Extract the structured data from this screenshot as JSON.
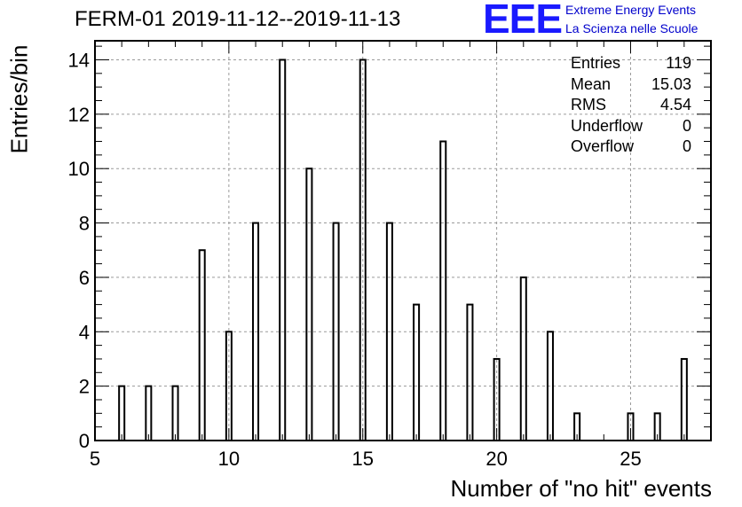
{
  "chart_data": {
    "type": "bar",
    "title": "FERM-01 2019-11-12--2019-11-13",
    "xlabel": "Number of \"no hit\" events",
    "ylabel": "Entries/bin",
    "xlim": [
      5,
      28
    ],
    "ylim": [
      0,
      14.7
    ],
    "grid": true,
    "x_ticks": [
      "5",
      "10",
      "15",
      "20",
      "25"
    ],
    "y_ticks": [
      "0",
      "2",
      "4",
      "6",
      "8",
      "10",
      "12",
      "14"
    ],
    "x": [
      6,
      7,
      8,
      9,
      10,
      11,
      12,
      13,
      14,
      15,
      16,
      17,
      18,
      19,
      20,
      21,
      22,
      23,
      24,
      25,
      26,
      27
    ],
    "values": [
      2,
      2,
      2,
      7,
      4,
      8,
      14,
      10,
      8,
      14,
      8,
      5,
      11,
      5,
      3,
      6,
      4,
      1,
      0,
      1,
      1,
      3
    ],
    "stats": [
      {
        "label": "Entries",
        "value": "119"
      },
      {
        "label": "Mean",
        "value": "15.03"
      },
      {
        "label": "RMS",
        "value": "4.54"
      },
      {
        "label": "Underflow",
        "value": "0"
      },
      {
        "label": "Overflow",
        "value": "0"
      }
    ]
  },
  "logo": {
    "mark": "EEE",
    "line1": "Extreme Energy Events",
    "line2": "La Scienza nelle Scuole"
  }
}
